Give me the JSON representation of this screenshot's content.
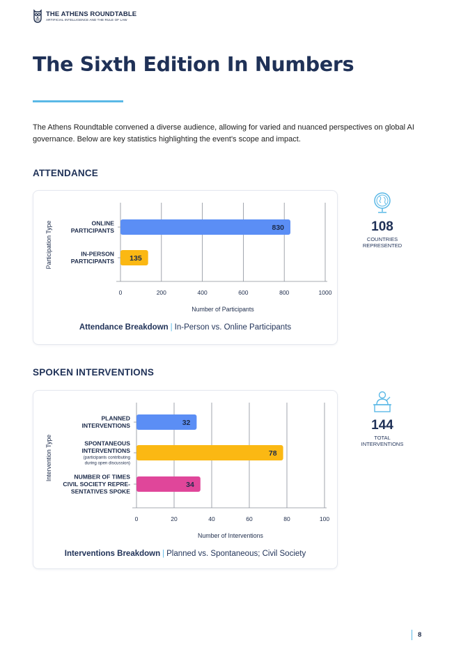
{
  "header": {
    "logo_title": "THE ATHENS ROUNDTABLE",
    "logo_subtitle": "ARTIFICIAL INTELLIGENCE AND THE RULE OF LAW"
  },
  "page": {
    "title": "The Sixth Edition In Numbers",
    "intro": "The Athens Roundtable convened a diverse audience, allowing for varied and nuanced perspectives on global AI governance. Below are key statistics highlighting the event's scope and impact.",
    "page_number": "8"
  },
  "attendance": {
    "heading": "ATTENDANCE",
    "caption_bold": "Attendance Breakdown",
    "caption_rest": "In-Person vs. Online Participants",
    "stat_value": "108",
    "stat_label_1": "COUNTRIES",
    "stat_label_2": "REPRESENTED"
  },
  "interventions": {
    "heading": "SPOKEN INTERVENTIONS",
    "caption_bold": "Interventions Breakdown",
    "caption_rest": "Planned vs. Spontaneous; Civil Society",
    "stat_value": "144",
    "stat_label_1": "TOTAL",
    "stat_label_2": "INTERVENTIONS"
  },
  "colors": {
    "blue": "#5b8ef5",
    "yellow": "#fbb813",
    "pink": "#e0469a",
    "navy": "#1f3157",
    "accent": "#5ab8e6"
  },
  "chart_data": [
    {
      "type": "bar",
      "orientation": "horizontal",
      "title": "Attendance Breakdown",
      "categories": [
        [
          "ONLINE",
          "PARTICIPANTS"
        ],
        [
          "IN-PERSON",
          "PARTICIPANTS"
        ]
      ],
      "notes": [
        [],
        []
      ],
      "values": [
        830,
        135
      ],
      "value_labels": [
        "830",
        "135"
      ],
      "colors": [
        "#5b8ef5",
        "#fbb813"
      ],
      "xlabel": "Number of Participants",
      "ylabel": "Participation Type",
      "xlim": [
        0,
        1000
      ],
      "ticks": [
        0,
        200,
        400,
        600,
        800,
        1000
      ],
      "grid": true
    },
    {
      "type": "bar",
      "orientation": "horizontal",
      "title": "Interventions Breakdown",
      "categories": [
        [
          "PLANNED",
          "INTERVENTIONS"
        ],
        [
          "SPONTANEOUS",
          "INTERVENTIONS"
        ],
        [
          "NUMBER OF TIMES",
          "CIVIL SOCIETY REPRE-",
          "SENTATIVES SPOKE"
        ]
      ],
      "notes": [
        [],
        [
          "(participants contributing",
          "during open discussion)"
        ],
        []
      ],
      "values": [
        32,
        78,
        34
      ],
      "value_labels": [
        "32",
        "78",
        "34"
      ],
      "colors": [
        "#5b8ef5",
        "#fbb813",
        "#e0469a"
      ],
      "xlabel": "Number of Interventions",
      "ylabel": "Intervention Type",
      "xlim": [
        0,
        100
      ],
      "ticks": [
        0,
        20,
        40,
        60,
        80,
        100
      ],
      "grid": true
    }
  ]
}
